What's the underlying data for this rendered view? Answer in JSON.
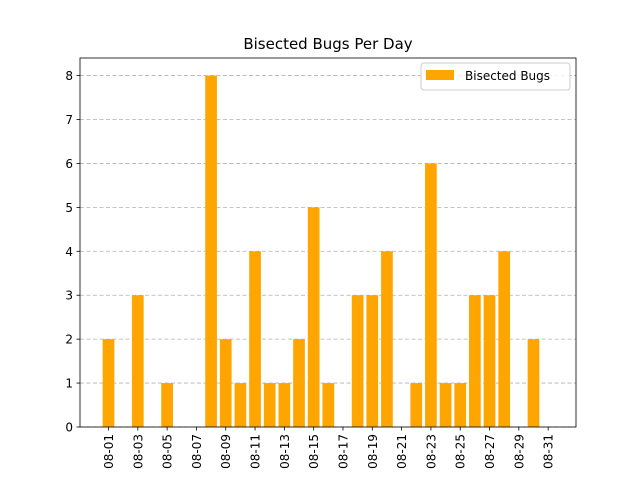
{
  "chart_data": {
    "type": "bar",
    "title": "Bisected Bugs Per Day",
    "xlabel": "",
    "ylabel": "",
    "categories": [
      "08-01",
      "08-02",
      "08-03",
      "08-04",
      "08-05",
      "08-06",
      "08-07",
      "08-08",
      "08-09",
      "08-10",
      "08-11",
      "08-12",
      "08-13",
      "08-14",
      "08-15",
      "08-16",
      "08-17",
      "08-18",
      "08-19",
      "08-20",
      "08-21",
      "08-22",
      "08-23",
      "08-24",
      "08-25",
      "08-26",
      "08-27",
      "08-28",
      "08-29",
      "08-30",
      "08-31"
    ],
    "x_tick_labels": [
      "08-01",
      "08-03",
      "08-05",
      "08-07",
      "08-09",
      "08-11",
      "08-13",
      "08-15",
      "08-17",
      "08-19",
      "08-21",
      "08-23",
      "08-25",
      "08-27",
      "08-29",
      "08-31"
    ],
    "series": [
      {
        "name": "Bisected Bugs",
        "color": "#ffa500",
        "values": [
          2,
          0,
          3,
          0,
          1,
          0,
          0,
          8,
          2,
          1,
          4,
          1,
          1,
          2,
          5,
          1,
          0,
          3,
          3,
          4,
          0,
          1,
          6,
          1,
          1,
          3,
          3,
          4,
          0,
          2,
          0
        ]
      }
    ],
    "ylim": [
      0,
      8.4
    ],
    "y_ticks": [
      0,
      1,
      2,
      3,
      4,
      5,
      6,
      7,
      8
    ],
    "grid": "y-dashed",
    "legend_position": "top-right"
  }
}
